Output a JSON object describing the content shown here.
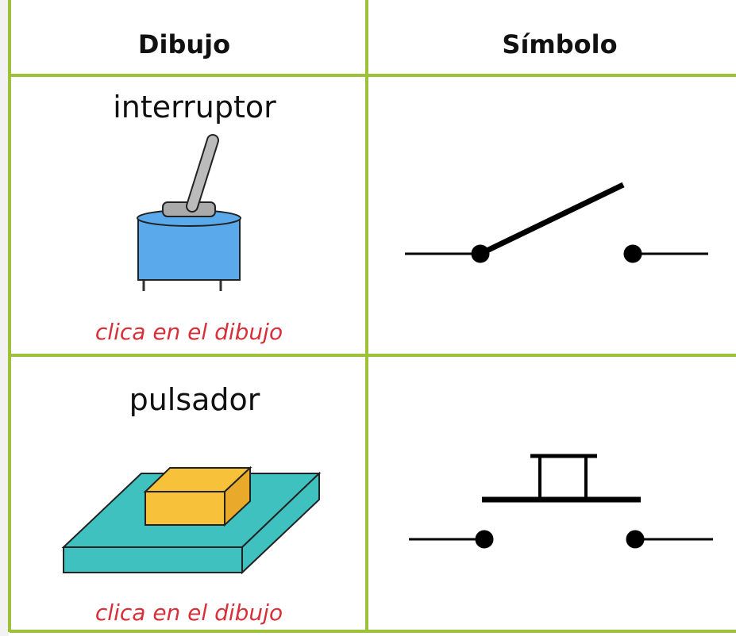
{
  "table": {
    "header": [
      "Dibujo",
      "Símbolo"
    ],
    "rows": [
      {
        "label": "interruptor",
        "hint": "clica en el dibujo"
      },
      {
        "label": "pulsador",
        "hint": "clica en el dibujo"
      }
    ]
  }
}
